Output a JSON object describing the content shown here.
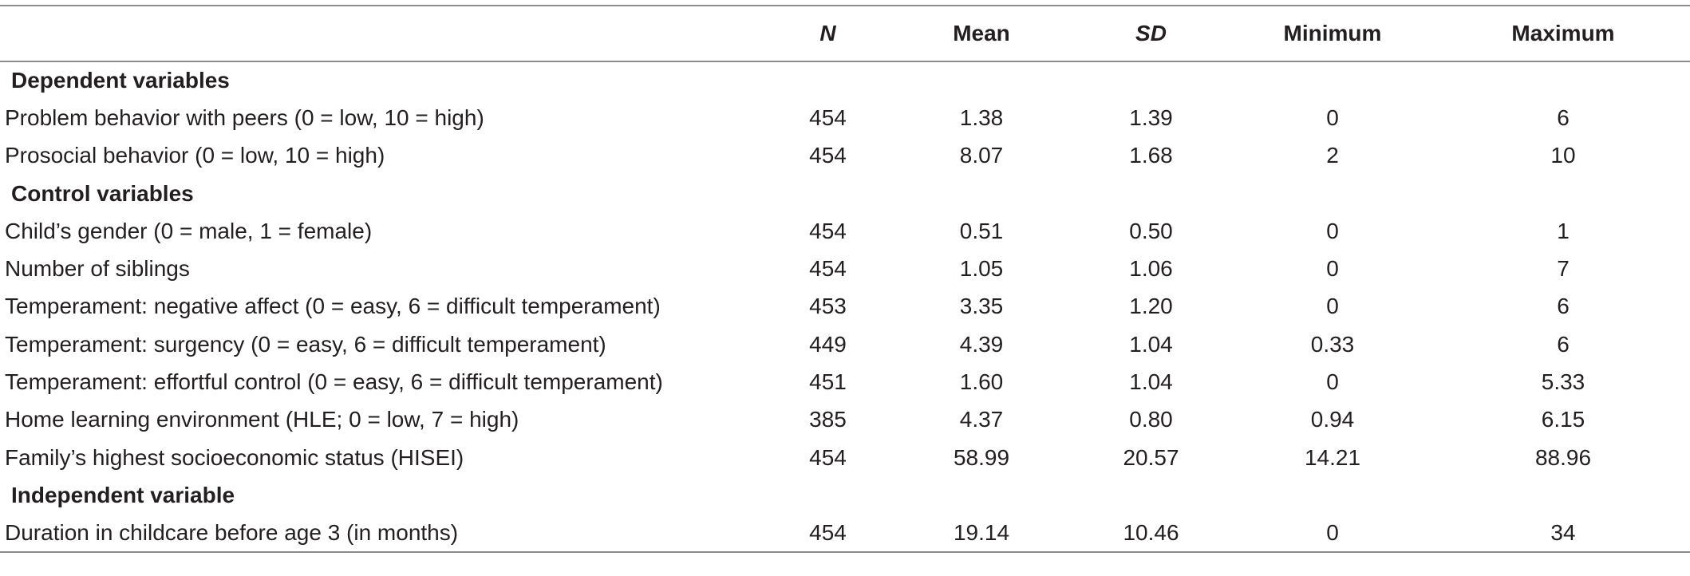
{
  "header": {
    "label": "",
    "n": "N",
    "mean": "Mean",
    "sd": "SD",
    "minimum": "Minimum",
    "maximum": "Maximum"
  },
  "sections": [
    {
      "title": "Dependent variables",
      "rows": [
        {
          "label": "Problem behavior with peers (0 = low, 10 = high)",
          "n": "454",
          "mean": "1.38",
          "sd": "1.39",
          "min": "0",
          "max": "6"
        },
        {
          "label": "Prosocial behavior (0 = low, 10 = high)",
          "n": "454",
          "mean": "8.07",
          "sd": "1.68",
          "min": "2",
          "max": "10"
        }
      ]
    },
    {
      "title": "Control variables",
      "rows": [
        {
          "label": "Child’s gender (0 = male, 1 = female)",
          "n": "454",
          "mean": "0.51",
          "sd": "0.50",
          "min": "0",
          "max": "1"
        },
        {
          "label": "Number of siblings",
          "n": "454",
          "mean": "1.05",
          "sd": "1.06",
          "min": "0",
          "max": "7"
        },
        {
          "label": "Temperament: negative affect (0 = easy, 6 = difficult temperament)",
          "n": "453",
          "mean": "3.35",
          "sd": "1.20",
          "min": "0",
          "max": "6"
        },
        {
          "label": "Temperament: surgency (0 = easy, 6 = difficult temperament)",
          "n": "449",
          "mean": "4.39",
          "sd": "1.04",
          "min": "0.33",
          "max": "6"
        },
        {
          "label": "Temperament: effortful control (0 = easy, 6 = difficult temperament)",
          "n": "451",
          "mean": "1.60",
          "sd": "1.04",
          "min": "0",
          "max": "5.33"
        },
        {
          "label": "Home learning environment (HLE; 0 = low, 7 = high)",
          "n": "385",
          "mean": "4.37",
          "sd": "0.80",
          "min": "0.94",
          "max": "6.15"
        },
        {
          "label": "Family’s highest socioeconomic status (HISEI)",
          "n": "454",
          "mean": "58.99",
          "sd": "20.57",
          "min": "14.21",
          "max": "88.96"
        }
      ]
    },
    {
      "title": "Independent variable",
      "rows": [
        {
          "label": "Duration in childcare before age 3 (in months)",
          "n": "454",
          "mean": "19.14",
          "sd": "10.46",
          "min": "0",
          "max": "34"
        }
      ]
    }
  ]
}
